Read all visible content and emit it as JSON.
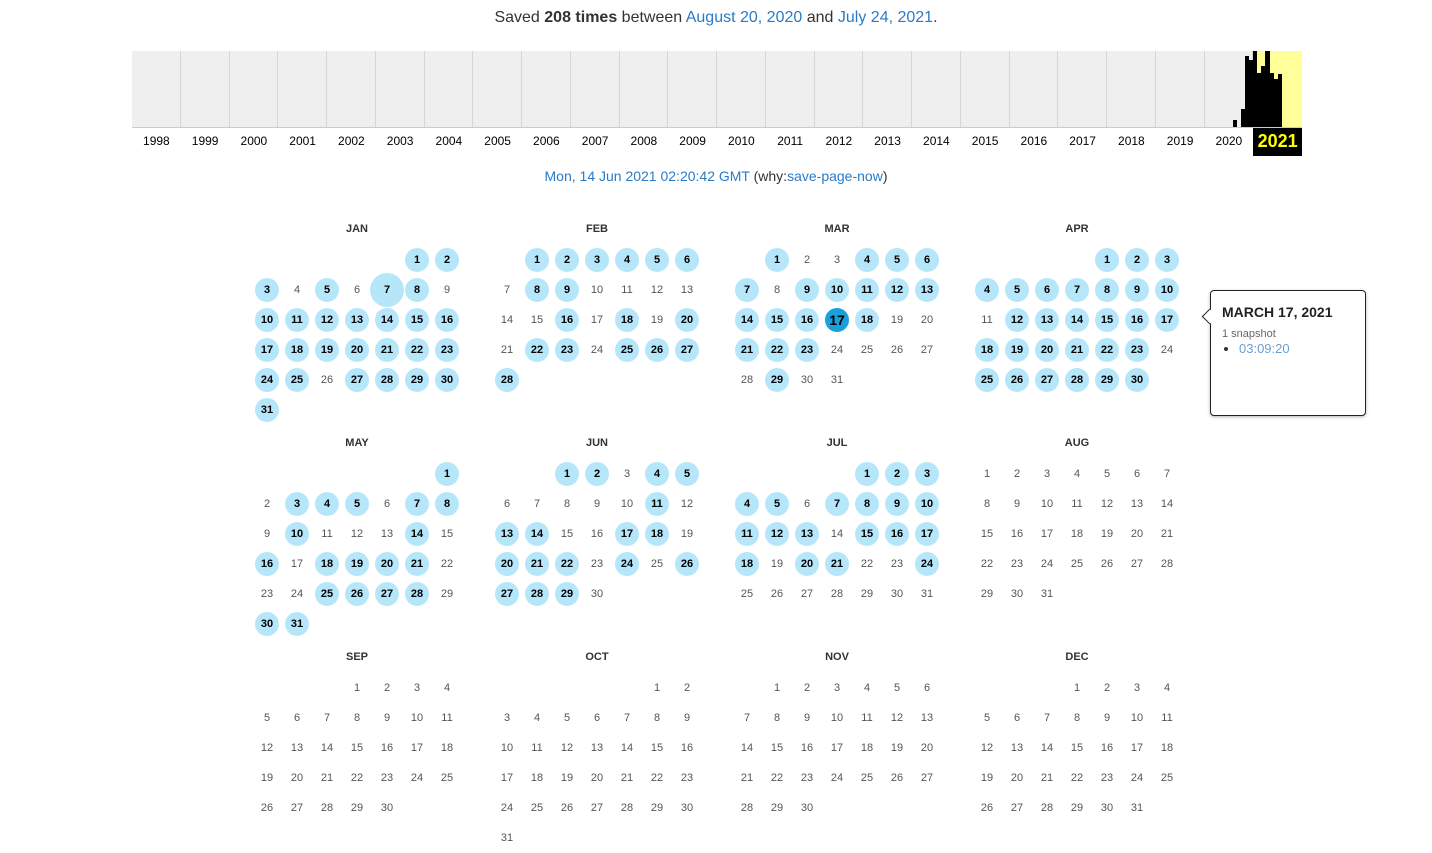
{
  "summary": {
    "prefix": "Saved",
    "count": "208 times",
    "between": "between",
    "start": "August 20, 2020",
    "and": "and",
    "end": "July 24, 2021",
    "suffix": "."
  },
  "sparkline": {
    "years": [
      "1998",
      "1999",
      "2000",
      "2001",
      "2002",
      "2003",
      "2004",
      "2005",
      "2006",
      "2007",
      "2008",
      "2009",
      "2010",
      "2011",
      "2012",
      "2013",
      "2014",
      "2015",
      "2016",
      "2017",
      "2018",
      "2019",
      "2020",
      "2021"
    ],
    "selected_year": "2021",
    "monthly_relative_activity": {
      "2020": [
        0,
        0,
        0,
        0,
        0,
        0,
        0,
        0.09,
        0,
        0.24,
        0.93,
        0.88
      ],
      "2021": [
        1,
        0.71,
        0.8,
        1,
        0.71,
        0.63,
        0.7,
        0,
        0,
        0,
        0,
        0
      ]
    },
    "colors": {
      "selected_bg": "#ffff9a",
      "bar": "#000000",
      "selected_label": "#ffff00"
    }
  },
  "capture": {
    "timestamp": "Mon, 14 Jun 2021 02:20:42 GMT",
    "why_prefix": "(why:",
    "reason": "save-page-now",
    "why_suffix": ")"
  },
  "calendar": {
    "year": 2021,
    "months": [
      {
        "name": "JAN",
        "snapshot_days": [
          1,
          2,
          3,
          5,
          7,
          8,
          10,
          11,
          12,
          13,
          14,
          15,
          16,
          17,
          18,
          19,
          20,
          21,
          22,
          23,
          24,
          25,
          27,
          28,
          29,
          30,
          31
        ],
        "large_days": [
          7
        ]
      },
      {
        "name": "FEB",
        "snapshot_days": [
          1,
          2,
          3,
          4,
          5,
          6,
          8,
          9,
          16,
          18,
          20,
          22,
          23,
          25,
          26,
          27,
          28
        ]
      },
      {
        "name": "MAR",
        "snapshot_days": [
          1,
          4,
          5,
          6,
          7,
          9,
          10,
          11,
          12,
          13,
          14,
          15,
          16,
          17,
          18,
          21,
          22,
          23,
          29
        ],
        "active_day": 17
      },
      {
        "name": "APR",
        "snapshot_days": [
          1,
          2,
          3,
          4,
          5,
          6,
          7,
          8,
          9,
          10,
          12,
          13,
          14,
          15,
          16,
          17,
          18,
          19,
          20,
          21,
          22,
          23,
          25,
          26,
          27,
          28,
          29,
          30
        ]
      },
      {
        "name": "MAY",
        "snapshot_days": [
          1,
          3,
          4,
          5,
          7,
          8,
          10,
          14,
          16,
          18,
          19,
          20,
          21,
          25,
          26,
          27,
          28,
          30,
          31
        ]
      },
      {
        "name": "JUN",
        "snapshot_days": [
          1,
          2,
          4,
          5,
          11,
          13,
          14,
          17,
          18,
          20,
          21,
          22,
          24,
          26,
          27,
          28,
          29
        ]
      },
      {
        "name": "JUL",
        "snapshot_days": [
          1,
          2,
          3,
          4,
          5,
          7,
          8,
          9,
          10,
          11,
          12,
          13,
          15,
          16,
          17,
          18,
          20,
          21,
          24
        ]
      },
      {
        "name": "AUG",
        "snapshot_days": []
      },
      {
        "name": "SEP",
        "snapshot_days": []
      },
      {
        "name": "OCT",
        "snapshot_days": []
      },
      {
        "name": "NOV",
        "snapshot_days": []
      },
      {
        "name": "DEC",
        "snapshot_days": []
      }
    ],
    "colors": {
      "snapshot": "#b6e6fa",
      "active": "#1aa0dc"
    }
  },
  "tooltip": {
    "date": "MARCH 17, 2021",
    "count": "1 snapshot",
    "times": [
      "03:09:20"
    ]
  }
}
